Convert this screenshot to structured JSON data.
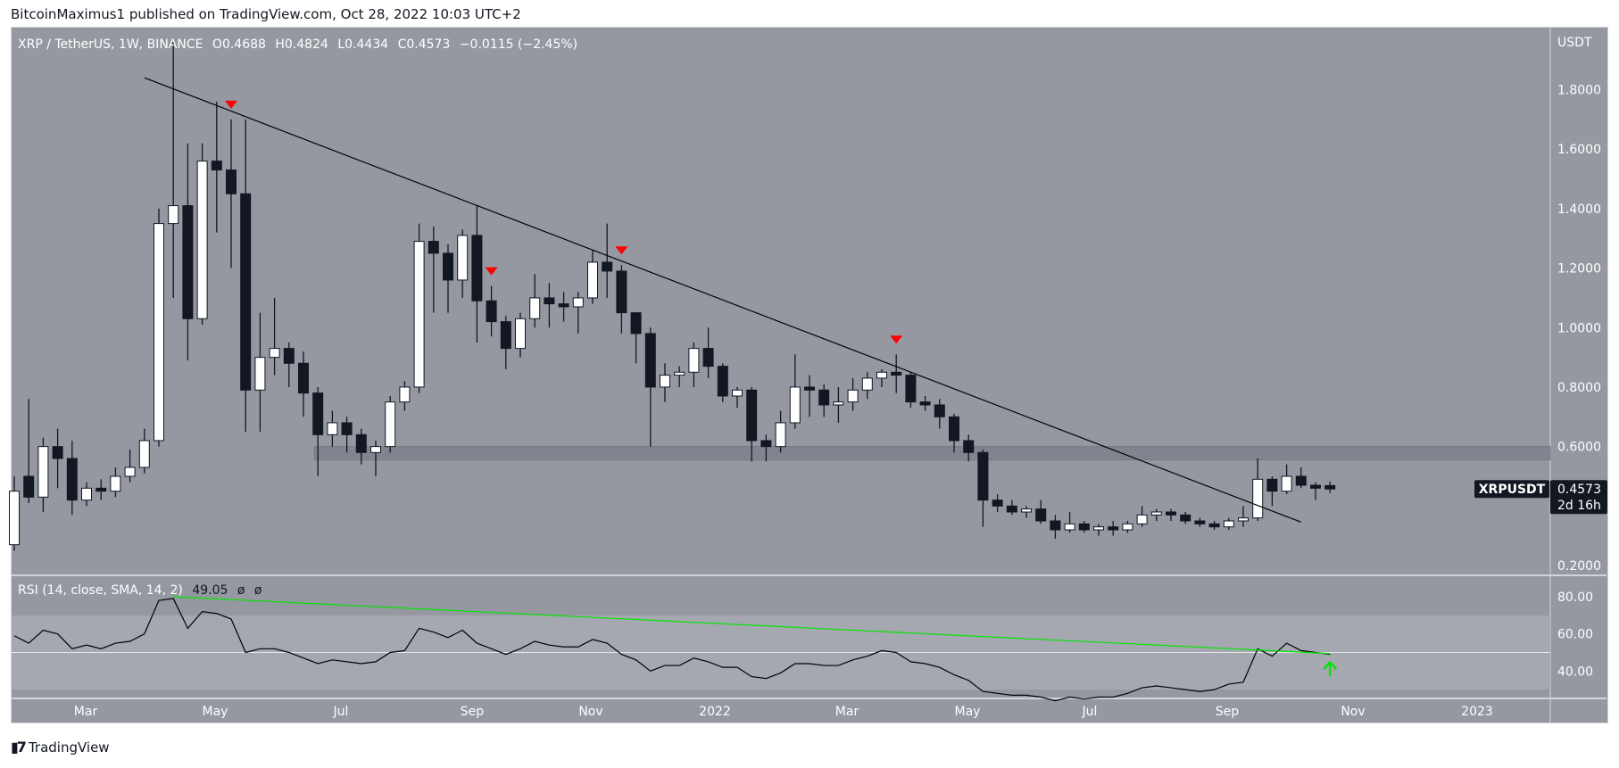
{
  "header": {
    "published": "BitcoinMaximus1 published on TradingView.com, Oct 28, 2022 10:03 UTC+2"
  },
  "legend": {
    "symbol": "XRP / TetherUS, 1W, BINANCE",
    "open": "O0.4688",
    "high": "H0.4824",
    "low": "L0.4434",
    "close": "C0.4573",
    "change": "−0.0115 (−2.45%)"
  },
  "rsi_legend": {
    "label": "RSI (14, close, SMA, 14, 2)",
    "value": "49.05",
    "extra1": "ø",
    "extra2": "ø"
  },
  "price_axis": {
    "currency": "USDT",
    "ticks": [
      "1.8000",
      "1.6000",
      "1.4000",
      "1.2000",
      "1.0000",
      "0.8000",
      "0.6000",
      "0.2000"
    ]
  },
  "rsi_axis": {
    "ticks": [
      "80.00",
      "60.00",
      "40.00"
    ]
  },
  "last_price": {
    "symbol": "XRPUSDT",
    "price": "0.4573",
    "countdown": "2d 16h"
  },
  "time_axis": {
    "ticks": [
      "Mar",
      "May",
      "Jul",
      "Sep",
      "Nov",
      "2022",
      "Mar",
      "May",
      "Jul",
      "Sep",
      "Nov",
      "2023"
    ]
  },
  "footer": {
    "brand": "TradingView"
  },
  "colors": {
    "background": "#9598a1",
    "up_candle": "#ffffff",
    "down_candle": "#131722",
    "marker": "#ff0000",
    "rsi_trend": "#00e600",
    "rsi_line": "#000000",
    "zone": "#7d808a"
  },
  "chart_data": [
    {
      "type": "candlestick",
      "title": "XRP / TetherUS, 1W, BINANCE",
      "ylabel": "USDT",
      "ylim": [
        0.2,
        1.95
      ],
      "ohlc": [
        [
          0.27,
          0.5,
          0.25,
          0.45
        ],
        [
          0.5,
          0.76,
          0.41,
          0.43
        ],
        [
          0.43,
          0.63,
          0.38,
          0.6
        ],
        [
          0.6,
          0.66,
          0.46,
          0.56
        ],
        [
          0.56,
          0.62,
          0.37,
          0.42
        ],
        [
          0.42,
          0.48,
          0.4,
          0.46
        ],
        [
          0.46,
          0.49,
          0.42,
          0.45
        ],
        [
          0.45,
          0.53,
          0.43,
          0.5
        ],
        [
          0.5,
          0.59,
          0.48,
          0.53
        ],
        [
          0.53,
          0.66,
          0.51,
          0.62
        ],
        [
          0.62,
          1.4,
          0.6,
          1.35
        ],
        [
          1.35,
          1.96,
          1.1,
          1.41
        ],
        [
          1.41,
          1.62,
          0.89,
          1.03
        ],
        [
          1.03,
          1.62,
          1.01,
          1.56
        ],
        [
          1.56,
          1.76,
          1.32,
          1.53
        ],
        [
          1.53,
          1.7,
          1.2,
          1.45
        ],
        [
          1.45,
          1.7,
          0.65,
          0.79
        ],
        [
          0.79,
          1.05,
          0.65,
          0.9
        ],
        [
          0.9,
          1.1,
          0.84,
          0.93
        ],
        [
          0.93,
          0.95,
          0.8,
          0.88
        ],
        [
          0.88,
          0.92,
          0.7,
          0.78
        ],
        [
          0.78,
          0.8,
          0.5,
          0.64
        ],
        [
          0.64,
          0.72,
          0.6,
          0.68
        ],
        [
          0.68,
          0.7,
          0.58,
          0.64
        ],
        [
          0.64,
          0.66,
          0.54,
          0.58
        ],
        [
          0.58,
          0.62,
          0.5,
          0.6
        ],
        [
          0.6,
          0.77,
          0.58,
          0.75
        ],
        [
          0.75,
          0.82,
          0.72,
          0.8
        ],
        [
          0.8,
          1.35,
          0.78,
          1.29
        ],
        [
          1.29,
          1.34,
          1.05,
          1.25
        ],
        [
          1.25,
          1.28,
          1.05,
          1.16
        ],
        [
          1.16,
          1.33,
          1.1,
          1.31
        ],
        [
          1.31,
          1.41,
          0.95,
          1.09
        ],
        [
          1.09,
          1.14,
          0.97,
          1.02
        ],
        [
          1.02,
          1.04,
          0.86,
          0.93
        ],
        [
          0.93,
          1.05,
          0.9,
          1.03
        ],
        [
          1.03,
          1.18,
          1.0,
          1.1
        ],
        [
          1.1,
          1.15,
          1.0,
          1.08
        ],
        [
          1.08,
          1.12,
          1.02,
          1.07
        ],
        [
          1.07,
          1.12,
          0.98,
          1.1
        ],
        [
          1.1,
          1.26,
          1.08,
          1.22
        ],
        [
          1.22,
          1.35,
          1.1,
          1.19
        ],
        [
          1.19,
          1.21,
          0.98,
          1.05
        ],
        [
          1.05,
          1.05,
          0.88,
          0.98
        ],
        [
          0.98,
          1.0,
          0.6,
          0.8
        ],
        [
          0.8,
          0.88,
          0.75,
          0.84
        ],
        [
          0.84,
          0.87,
          0.8,
          0.85
        ],
        [
          0.85,
          0.95,
          0.8,
          0.93
        ],
        [
          0.93,
          1.0,
          0.83,
          0.87
        ],
        [
          0.87,
          0.88,
          0.75,
          0.77
        ],
        [
          0.77,
          0.8,
          0.73,
          0.79
        ],
        [
          0.79,
          0.8,
          0.55,
          0.62
        ],
        [
          0.62,
          0.64,
          0.55,
          0.6
        ],
        [
          0.6,
          0.72,
          0.58,
          0.68
        ],
        [
          0.68,
          0.91,
          0.66,
          0.8
        ],
        [
          0.8,
          0.84,
          0.7,
          0.79
        ],
        [
          0.79,
          0.81,
          0.7,
          0.74
        ],
        [
          0.74,
          0.8,
          0.68,
          0.75
        ],
        [
          0.75,
          0.83,
          0.72,
          0.79
        ],
        [
          0.79,
          0.85,
          0.76,
          0.83
        ],
        [
          0.83,
          0.86,
          0.8,
          0.85
        ],
        [
          0.85,
          0.91,
          0.78,
          0.84
        ],
        [
          0.84,
          0.85,
          0.73,
          0.75
        ],
        [
          0.75,
          0.77,
          0.72,
          0.74
        ],
        [
          0.74,
          0.76,
          0.66,
          0.7
        ],
        [
          0.7,
          0.71,
          0.58,
          0.62
        ],
        [
          0.62,
          0.64,
          0.55,
          0.58
        ],
        [
          0.58,
          0.59,
          0.33,
          0.42
        ],
        [
          0.42,
          0.44,
          0.38,
          0.4
        ],
        [
          0.4,
          0.42,
          0.37,
          0.38
        ],
        [
          0.38,
          0.4,
          0.36,
          0.39
        ],
        [
          0.39,
          0.42,
          0.34,
          0.35
        ],
        [
          0.35,
          0.37,
          0.29,
          0.32
        ],
        [
          0.32,
          0.38,
          0.31,
          0.34
        ],
        [
          0.34,
          0.35,
          0.31,
          0.32
        ],
        [
          0.32,
          0.34,
          0.3,
          0.33
        ],
        [
          0.33,
          0.35,
          0.3,
          0.32
        ],
        [
          0.32,
          0.35,
          0.31,
          0.34
        ],
        [
          0.34,
          0.4,
          0.33,
          0.37
        ],
        [
          0.37,
          0.39,
          0.35,
          0.38
        ],
        [
          0.38,
          0.39,
          0.35,
          0.37
        ],
        [
          0.37,
          0.38,
          0.34,
          0.35
        ],
        [
          0.35,
          0.36,
          0.33,
          0.34
        ],
        [
          0.34,
          0.35,
          0.32,
          0.33
        ],
        [
          0.33,
          0.36,
          0.32,
          0.35
        ],
        [
          0.35,
          0.4,
          0.33,
          0.36
        ],
        [
          0.36,
          0.56,
          0.35,
          0.49
        ],
        [
          0.49,
          0.5,
          0.4,
          0.45
        ],
        [
          0.45,
          0.54,
          0.44,
          0.5
        ],
        [
          0.5,
          0.53,
          0.46,
          0.47
        ],
        [
          0.47,
          0.48,
          0.42,
          0.46
        ],
        [
          0.4688,
          0.4824,
          0.4434,
          0.4573
        ]
      ],
      "support_zone": [
        0.555,
        0.6
      ],
      "trendline": {
        "from": {
          "candle": 9,
          "price": 1.84
        },
        "to": {
          "candle": 89,
          "price": 0.346
        }
      },
      "rejection_markers": [
        15,
        33,
        42,
        61
      ]
    },
    {
      "type": "line",
      "title": "RSI (14, close, SMA, 14, 2)",
      "ylim": [
        24,
        88
      ],
      "bands": {
        "upper": 70,
        "middle": 50,
        "lower": 30
      },
      "values": [
        59,
        55,
        62,
        60,
        52,
        54,
        52,
        55,
        56,
        60,
        78,
        79,
        63,
        72,
        71,
        68,
        50,
        52,
        52,
        50,
        47,
        44,
        46,
        45,
        44,
        45,
        50,
        51,
        63,
        61,
        58,
        62,
        55,
        52,
        49,
        52,
        56,
        54,
        53,
        53,
        57,
        55,
        49,
        46,
        40,
        43,
        43,
        47,
        45,
        42,
        42,
        37,
        36,
        39,
        44,
        44,
        43,
        43,
        46,
        48,
        51,
        50,
        45,
        44,
        42,
        38,
        35,
        29,
        28,
        27,
        27,
        26,
        24,
        26,
        25,
        26,
        26,
        28,
        31,
        32,
        31,
        30,
        29,
        30,
        33,
        34,
        52,
        48,
        55,
        51,
        50,
        49.05
      ],
      "trendline": {
        "from": {
          "candle": 11,
          "value": 80
        },
        "to": {
          "candle": 91,
          "value": 49.4
        }
      },
      "breakout_marker": {
        "candle": 91,
        "value": 41
      }
    }
  ]
}
